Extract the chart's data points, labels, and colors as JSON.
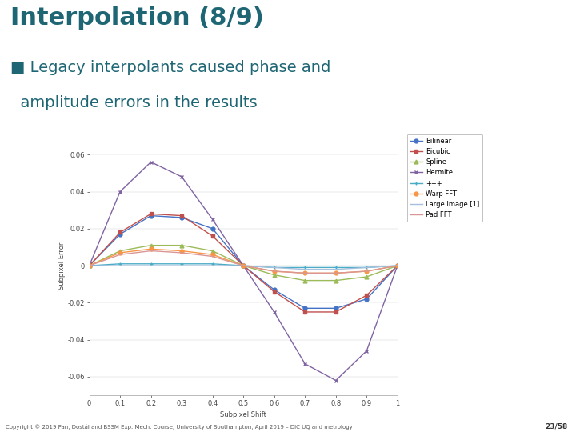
{
  "title": "Interpolation (8/9)",
  "bullet_prefix": "■ ",
  "bullet_line1": "Legacy interpolants caused phase and",
  "bullet_line2": "  amplitude errors in the results",
  "title_color": "#1F6674",
  "bg_color": "#FFFFFF",
  "xlabel": "Subpixel Shift",
  "ylabel": "Subpixel Error",
  "xlim": [
    0,
    1
  ],
  "ylim": [
    -0.07,
    0.07
  ],
  "yticks": [
    -0.06,
    -0.04,
    -0.02,
    0,
    0.02,
    0.04,
    0.06
  ],
  "ytick_labels": [
    "-0.06",
    "-0.04",
    "-0.02",
    "0",
    "0.02",
    "0.04",
    "0.06"
  ],
  "xticks": [
    0,
    0.1,
    0.2,
    0.3,
    0.4,
    0.5,
    0.6,
    0.7,
    0.8,
    0.9,
    1.0
  ],
  "xtick_labels": [
    "0",
    "0.1",
    "0.2",
    "0.3",
    "0.4",
    "0.5",
    "0.6",
    "0.7",
    "0.8",
    "0.9",
    "1"
  ],
  "x": [
    0,
    0.1,
    0.2,
    0.3,
    0.4,
    0.5,
    0.6,
    0.7,
    0.8,
    0.9,
    1.0
  ],
  "series": [
    {
      "name": "Bilinear",
      "color": "#4472C4",
      "marker": "o",
      "markersize": 3.5,
      "linestyle": "-",
      "linewidth": 1.0,
      "values": [
        0,
        0.017,
        0.027,
        0.026,
        0.02,
        0.0,
        -0.013,
        -0.023,
        -0.023,
        -0.018,
        0.0
      ]
    },
    {
      "name": "Bicubic",
      "color": "#C0504D",
      "marker": "s",
      "markersize": 3.5,
      "linestyle": "-",
      "linewidth": 1.0,
      "values": [
        0,
        0.018,
        0.028,
        0.027,
        0.016,
        0.0,
        -0.014,
        -0.025,
        -0.025,
        -0.016,
        0.0
      ]
    },
    {
      "name": "Spline",
      "color": "#9BBB59",
      "marker": "^",
      "markersize": 3.5,
      "linestyle": "-",
      "linewidth": 1.0,
      "values": [
        0,
        0.008,
        0.011,
        0.011,
        0.008,
        0.0,
        -0.005,
        -0.008,
        -0.008,
        -0.006,
        0.0
      ]
    },
    {
      "name": "Hermite",
      "color": "#8064A2",
      "marker": "x",
      "markersize": 3.5,
      "linestyle": "-",
      "linewidth": 1.0,
      "values": [
        0,
        0.04,
        0.056,
        0.048,
        0.025,
        0.0,
        -0.025,
        -0.053,
        -0.062,
        -0.046,
        0.0
      ]
    },
    {
      "name": "+++",
      "color": "#4BACC6",
      "marker": "+",
      "markersize": 3.5,
      "linestyle": "-",
      "linewidth": 1.0,
      "values": [
        0,
        0.001,
        0.001,
        0.001,
        0.001,
        0.0,
        -0.001,
        -0.001,
        -0.001,
        -0.001,
        0.0
      ]
    },
    {
      "name": "Warp FFT",
      "color": "#F79646",
      "marker": "o",
      "markersize": 3.5,
      "linestyle": "-",
      "linewidth": 1.0,
      "values": [
        0,
        0.007,
        0.009,
        0.008,
        0.006,
        0.0,
        -0.003,
        -0.004,
        -0.004,
        -0.003,
        0.0
      ]
    },
    {
      "name": "Large Image [1]",
      "color": "#A5BFDD",
      "marker": "None",
      "markersize": 3.0,
      "linestyle": "-",
      "linewidth": 1.0,
      "values": [
        0,
        0.0,
        0.0,
        0.0,
        0.0,
        0.0,
        -0.001,
        -0.002,
        -0.002,
        -0.001,
        0.0
      ]
    },
    {
      "name": "Pad FFT",
      "color": "#D99694",
      "marker": "None",
      "markersize": 3.0,
      "linestyle": "-",
      "linewidth": 1.0,
      "values": [
        0,
        0.006,
        0.008,
        0.007,
        0.005,
        0.0,
        -0.003,
        -0.004,
        -0.004,
        -0.003,
        0.0
      ]
    }
  ],
  "footer": "Copyright © 2019 Pan, Dostál and BSSM Exp. Mech. Course, University of Southampton, April 2019 – DIC UQ and metrology",
  "page": "23/58",
  "title_fontsize": 22,
  "bullet_fontsize": 14,
  "axis_label_fontsize": 6,
  "tick_fontsize": 6,
  "legend_fontsize": 6,
  "footer_fontsize": 5
}
